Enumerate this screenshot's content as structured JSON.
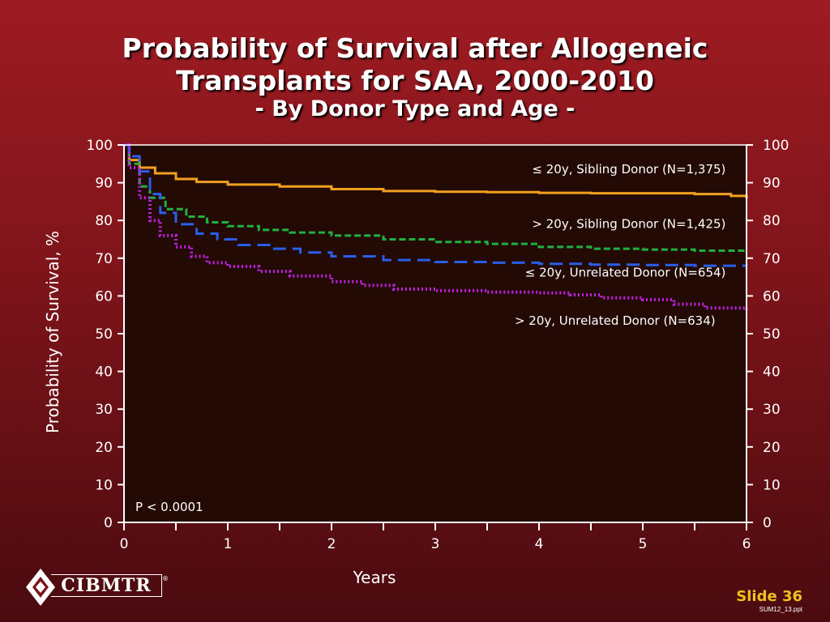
{
  "slide": {
    "title_line1": "Probability of Survival after Allogeneic",
    "title_line2": "Transplants for SAA, 2000-2010",
    "subtitle": "- By Donor Type and Age -",
    "logo_text": "CIBMTR",
    "logo_mark": "®",
    "slide_number": "Slide 36",
    "file_name": "SUM12_13.ppt"
  },
  "chart_data": {
    "type": "line",
    "title": "Probability of Survival after Allogeneic Transplants for SAA, 2000-2010",
    "subtitle": "- By Donor Type and Age -",
    "xlabel": "Years",
    "ylabel": "Probability of Survival, %",
    "xlim": [
      0,
      6
    ],
    "ylim": [
      0,
      100
    ],
    "x_ticks": [
      0,
      1,
      2,
      3,
      4,
      5,
      6
    ],
    "y_ticks": [
      0,
      10,
      20,
      30,
      40,
      50,
      60,
      70,
      80,
      90,
      100
    ],
    "annotation": "P < 0.0001",
    "grid": false,
    "colors": {
      "plot_bg": "#230a05",
      "axis": "#ffffff"
    },
    "series": [
      {
        "name": "≤ 20y, Sibling Donor (N=1,375)",
        "color": "#f0a020",
        "style": "solid",
        "points": [
          [
            0,
            100
          ],
          [
            0.05,
            96
          ],
          [
            0.15,
            94
          ],
          [
            0.3,
            92.5
          ],
          [
            0.5,
            91
          ],
          [
            0.7,
            90.2
          ],
          [
            1,
            89.5
          ],
          [
            1.5,
            89
          ],
          [
            2,
            88.3
          ],
          [
            2.5,
            87.8
          ],
          [
            3,
            87.6
          ],
          [
            3.5,
            87.5
          ],
          [
            4,
            87.3
          ],
          [
            4.5,
            87.2
          ],
          [
            5,
            87.2
          ],
          [
            5.5,
            87
          ],
          [
            5.85,
            86.5
          ],
          [
            6,
            85.8
          ]
        ]
      },
      {
        "name": "> 20y, Sibling Donor (N=1,425)",
        "color": "#20b040",
        "style": "dashed",
        "points": [
          [
            0,
            100
          ],
          [
            0.05,
            95
          ],
          [
            0.15,
            89
          ],
          [
            0.25,
            86
          ],
          [
            0.4,
            83
          ],
          [
            0.6,
            81
          ],
          [
            0.8,
            79.5
          ],
          [
            1,
            78.5
          ],
          [
            1.3,
            77.5
          ],
          [
            1.6,
            76.8
          ],
          [
            2,
            76
          ],
          [
            2.5,
            75
          ],
          [
            3,
            74.3
          ],
          [
            3.5,
            73.8
          ],
          [
            4,
            73
          ],
          [
            4.5,
            72.5
          ],
          [
            5,
            72.3
          ],
          [
            5.5,
            72
          ],
          [
            6,
            71.8
          ]
        ]
      },
      {
        "name": "≤ 20y, Unrelated Donor (N=654)",
        "color": "#2a5ee8",
        "style": "longdash",
        "points": [
          [
            0,
            100
          ],
          [
            0.05,
            97
          ],
          [
            0.15,
            93
          ],
          [
            0.25,
            87
          ],
          [
            0.35,
            82
          ],
          [
            0.5,
            79
          ],
          [
            0.7,
            76.5
          ],
          [
            0.9,
            75
          ],
          [
            1.1,
            73.5
          ],
          [
            1.4,
            72.5
          ],
          [
            1.7,
            71.5
          ],
          [
            2,
            70.5
          ],
          [
            2.5,
            69.5
          ],
          [
            3,
            69
          ],
          [
            3.5,
            68.8
          ],
          [
            4,
            68.5
          ],
          [
            4.5,
            68.3
          ],
          [
            5,
            68.2
          ],
          [
            5.5,
            68
          ],
          [
            6,
            67.8
          ]
        ]
      },
      {
        "name": "> 20y, Unrelated Donor (N=634)",
        "color": "#c020e0",
        "style": "dotted",
        "points": [
          [
            0,
            100
          ],
          [
            0.05,
            94
          ],
          [
            0.15,
            86
          ],
          [
            0.25,
            80
          ],
          [
            0.35,
            76
          ],
          [
            0.5,
            73
          ],
          [
            0.65,
            70.5
          ],
          [
            0.8,
            68.8
          ],
          [
            1,
            67.8
          ],
          [
            1.3,
            66.5
          ],
          [
            1.6,
            65.3
          ],
          [
            2,
            63.8
          ],
          [
            2.3,
            62.8
          ],
          [
            2.6,
            61.8
          ],
          [
            3,
            61.4
          ],
          [
            3.5,
            61
          ],
          [
            4,
            60.8
          ],
          [
            4.3,
            60.3
          ],
          [
            4.6,
            59.5
          ],
          [
            5,
            59
          ],
          [
            5.3,
            57.8
          ],
          [
            5.6,
            56.8
          ],
          [
            6,
            55.7
          ]
        ]
      }
    ],
    "legend_labels": [
      {
        "text": "≤ 20y, Sibling Donor (N=1,375)",
        "anchor_x": 5.8,
        "anchor_y": 92.5
      },
      {
        "text": "> 20y, Sibling Donor (N=1,425)",
        "anchor_x": 5.8,
        "anchor_y": 78
      },
      {
        "text": "≤ 20y, Unrelated Donor (N=654)",
        "anchor_x": 5.8,
        "anchor_y": 65.1
      },
      {
        "text": "> 20y, Unrelated Donor (N=634)",
        "anchor_x": 5.7,
        "anchor_y": 52.4
      }
    ]
  }
}
